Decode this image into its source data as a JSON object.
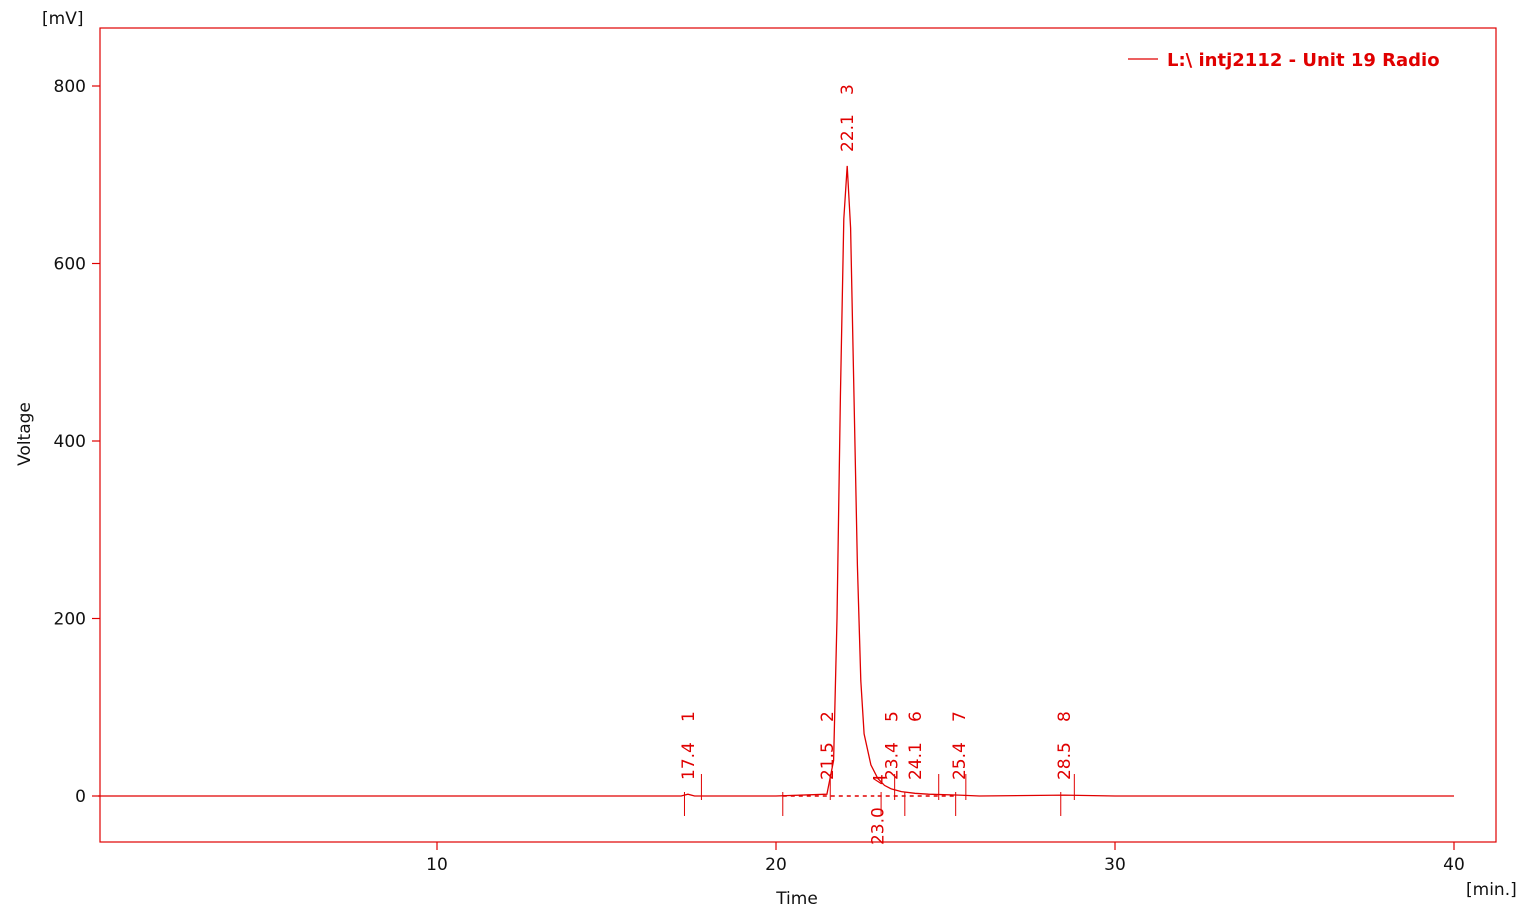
{
  "colors": {
    "trace": "#e00000",
    "axis": "#e00000",
    "text": "#111111",
    "background": "#ffffff"
  },
  "chart_data": {
    "type": "line",
    "title": "",
    "xlabel": "Time",
    "ylabel": "Voltage",
    "x_unit": "[min.]",
    "y_unit": "[mV]",
    "xlim": [
      0,
      41
    ],
    "ylim": [
      -50,
      870
    ],
    "x_ticks": [
      10,
      20,
      30,
      40
    ],
    "y_ticks": [
      0,
      200,
      400,
      600,
      800
    ],
    "grid": false,
    "legend_position": "top-right",
    "series": [
      {
        "name": "L:\\ intj2112 - Unit 19 Radio",
        "x": [
          0,
          15.0,
          17.2,
          17.4,
          17.6,
          20.0,
          21.5,
          21.7,
          21.8,
          21.9,
          22.0,
          22.1,
          22.2,
          22.3,
          22.4,
          22.5,
          22.6,
          22.8,
          23.0,
          23.2,
          23.4,
          23.7,
          24.1,
          24.5,
          25.4,
          26.0,
          28.5,
          30.0,
          40.0
        ],
        "y": [
          0,
          0,
          0,
          2,
          0,
          0,
          2,
          40,
          200,
          450,
          650,
          710,
          640,
          450,
          260,
          130,
          70,
          35,
          20,
          12,
          8,
          5,
          3,
          2,
          1,
          0,
          1,
          0,
          0
        ]
      }
    ],
    "peaks": [
      {
        "number": "1",
        "time": "17.4",
        "x": 17.4
      },
      {
        "number": "2",
        "time": "21.5",
        "x": 21.5
      },
      {
        "number": "3",
        "time": "22.1",
        "x": 22.1
      },
      {
        "number": "4",
        "time": "23.0",
        "x": 23.0
      },
      {
        "number": "5",
        "time": "23.4",
        "x": 23.4
      },
      {
        "number": "6",
        "time": "24.1",
        "x": 24.1
      },
      {
        "number": "7",
        "time": "25.4",
        "x": 25.4
      },
      {
        "number": "8",
        "time": "28.5",
        "x": 28.5
      }
    ],
    "integration_markers": [
      17.3,
      17.8,
      20.2,
      21.6,
      23.1,
      23.5,
      23.8,
      24.8,
      25.3,
      25.6,
      28.4,
      28.8
    ],
    "baseline_segments": [
      [
        20.2,
        22.9
      ],
      [
        23.0,
        25.3
      ]
    ]
  }
}
